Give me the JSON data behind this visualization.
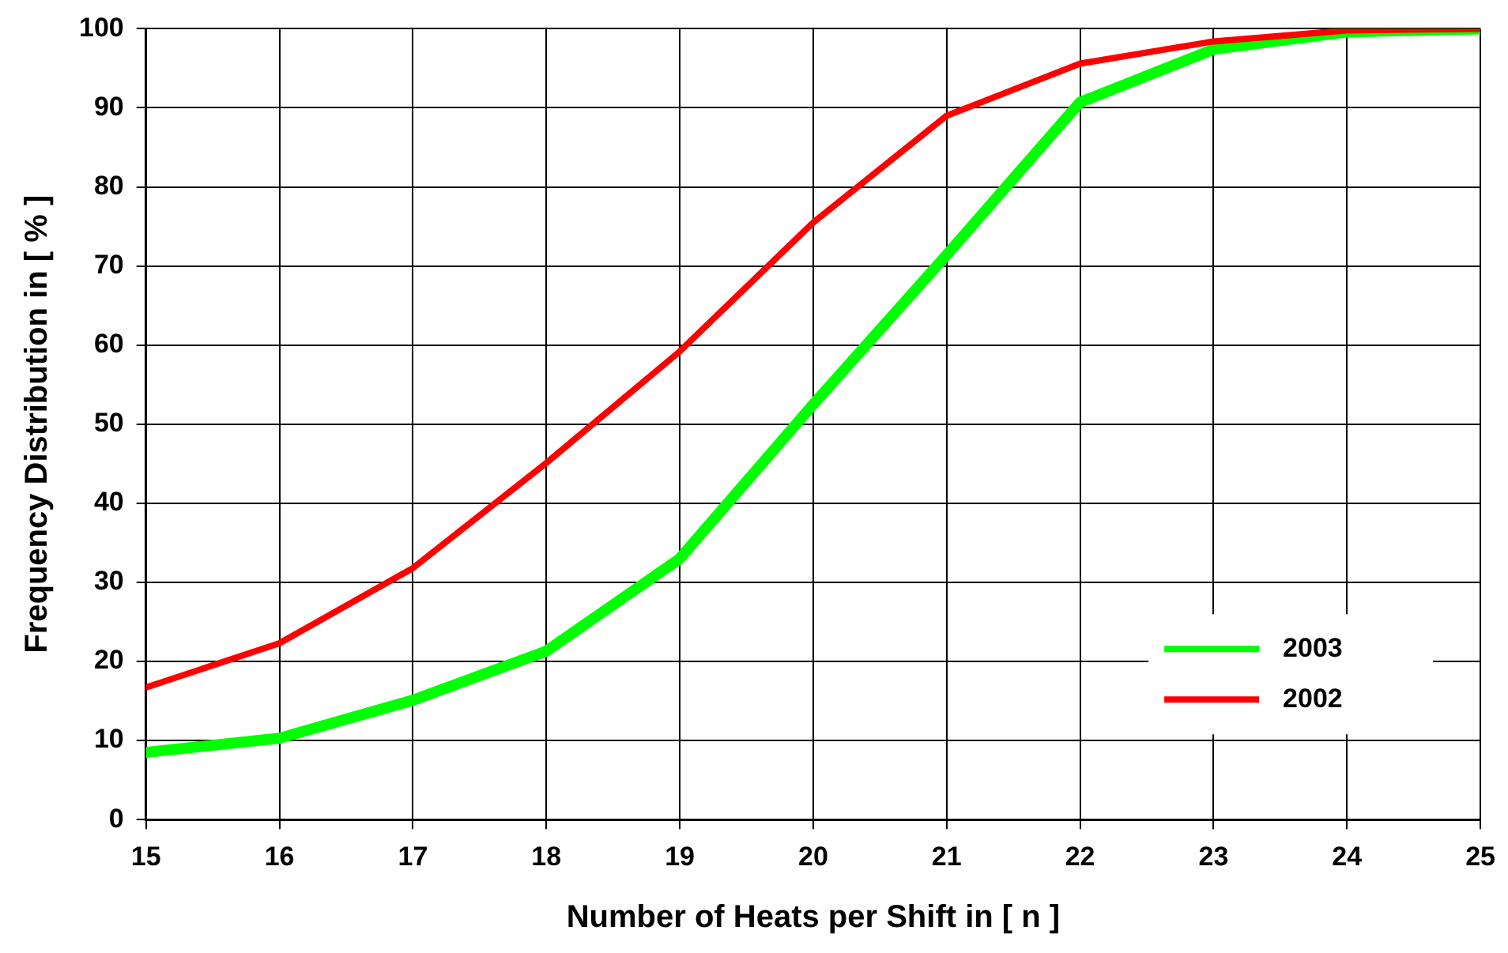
{
  "chart_data": {
    "type": "line",
    "xlabel": "Number of Heats per Shift in [ n ]",
    "ylabel": "Frequency Distribution in [ % ]",
    "x": [
      15,
      16,
      17,
      18,
      19,
      20,
      21,
      22,
      23,
      24,
      25
    ],
    "series": [
      {
        "name": "2003",
        "color": "#00ff00",
        "values": [
          8.5,
          10.3,
          15.1,
          21.3,
          33,
          52.5,
          71.4,
          90.7,
          97.4,
          99.6,
          100
        ]
      },
      {
        "name": "2002",
        "color": "#ff0000",
        "values": [
          16.7,
          22.3,
          31.8,
          45.1,
          59.2,
          75.5,
          89,
          95.6,
          98.4,
          99.8,
          100
        ]
      }
    ],
    "xlim": [
      15,
      25
    ],
    "xticks": [
      15,
      16,
      17,
      18,
      19,
      20,
      21,
      22,
      23,
      24,
      25
    ],
    "ylim": [
      0,
      100
    ],
    "yticks": [
      0,
      10,
      20,
      30,
      40,
      50,
      60,
      70,
      80,
      90,
      100
    ],
    "grid": true,
    "legend": "bottom right",
    "marker": "none",
    "line_style": "solid"
  }
}
